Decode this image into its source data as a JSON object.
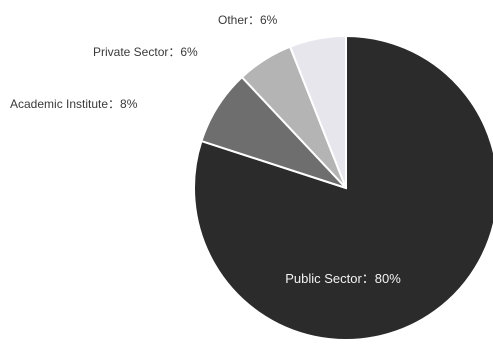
{
  "chart_data": {
    "type": "pie",
    "slices": [
      {
        "label": "Public Sector",
        "value": 80,
        "display": "Public Sector：80%",
        "color": "#2b2b2b"
      },
      {
        "label": "Academic Institute",
        "value": 8,
        "display": "Academic Institute：8%",
        "color": "#6e6e6e"
      },
      {
        "label": "Private Sector",
        "value": 6,
        "display": "Private Sector：6%",
        "color": "#b4b4b4"
      },
      {
        "label": "Other",
        "value": 6,
        "display": "Other：6%",
        "color": "#e6e6ec"
      }
    ],
    "start_angle_deg": 0,
    "direction": "clockwise",
    "legend": "none"
  }
}
